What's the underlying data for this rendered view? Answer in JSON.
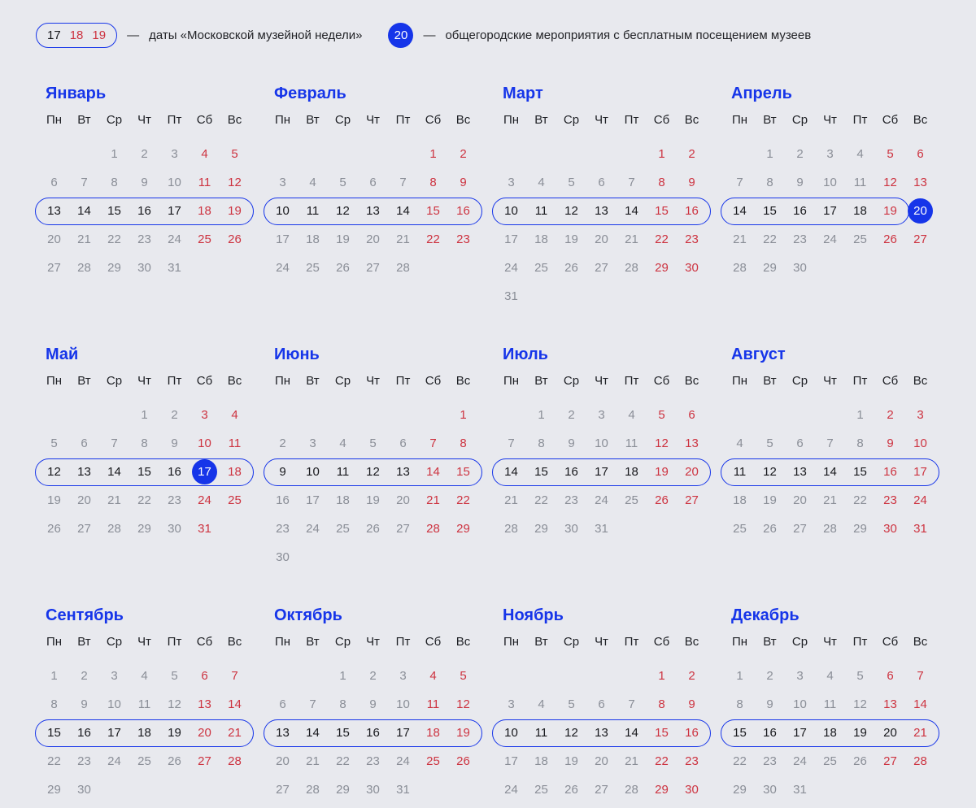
{
  "colors": {
    "background": "#e8e9ee",
    "blue": "#1635e9",
    "red": "#cd3340",
    "gray": "#8a8e97",
    "black": "#17181c",
    "header_text": "#1e2025",
    "legend_text": "#222327",
    "circle_text": "#ffffff"
  },
  "legend": {
    "dash": "—",
    "week_days": [
      "17",
      "18",
      "19"
    ],
    "week_text": "даты «Московской музейной недели»",
    "event_day": "20",
    "event_text": "общегородские мероприятия с бесплатным посещением музеев"
  },
  "weekdays": [
    "Пн",
    "Вт",
    "Ср",
    "Чт",
    "Пт",
    "Сб",
    "Вс"
  ],
  "months": [
    {
      "name": "Январь",
      "highlight_row": 2,
      "pill_cols": [
        0,
        6
      ],
      "rows": [
        [
          "",
          "",
          "1",
          "2",
          "3",
          "4",
          "5"
        ],
        [
          "6",
          "7",
          "8",
          "9",
          "10",
          "11",
          "12"
        ],
        [
          "13",
          "14",
          "15",
          "16",
          "17",
          "18",
          "19"
        ],
        [
          "20",
          "21",
          "22",
          "23",
          "24",
          "25",
          "26"
        ],
        [
          "27",
          "28",
          "29",
          "30",
          "31",
          "",
          ""
        ]
      ]
    },
    {
      "name": "Февраль",
      "highlight_row": 2,
      "pill_cols": [
        0,
        6
      ],
      "rows": [
        [
          "",
          "",
          "",
          "",
          "",
          "1",
          "2"
        ],
        [
          "3",
          "4",
          "5",
          "6",
          "7",
          "8",
          "9"
        ],
        [
          "10",
          "11",
          "12",
          "13",
          "14",
          "15",
          "16"
        ],
        [
          "17",
          "18",
          "19",
          "20",
          "21",
          "22",
          "23"
        ],
        [
          "24",
          "25",
          "26",
          "27",
          "28",
          "",
          ""
        ]
      ]
    },
    {
      "name": "Март",
      "highlight_row": 2,
      "pill_cols": [
        0,
        6
      ],
      "rows": [
        [
          "",
          "",
          "",
          "",
          "",
          "1",
          "2"
        ],
        [
          "3",
          "4",
          "5",
          "6",
          "7",
          "8",
          "9"
        ],
        [
          "10",
          "11",
          "12",
          "13",
          "14",
          "15",
          "16"
        ],
        [
          "17",
          "18",
          "19",
          "20",
          "21",
          "22",
          "23"
        ],
        [
          "24",
          "25",
          "26",
          "27",
          "28",
          "29",
          "30"
        ],
        [
          "31",
          "",
          "",
          "",
          "",
          "",
          ""
        ]
      ]
    },
    {
      "name": "Апрель",
      "highlight_row": 2,
      "pill_cols": [
        0,
        5
      ],
      "circled_day": "20",
      "rows": [
        [
          "",
          "1",
          "2",
          "3",
          "4",
          "5",
          "6"
        ],
        [
          "7",
          "8",
          "9",
          "10",
          "11",
          "12",
          "13"
        ],
        [
          "14",
          "15",
          "16",
          "17",
          "18",
          "19",
          "20"
        ],
        [
          "21",
          "22",
          "23",
          "24",
          "25",
          "26",
          "27"
        ],
        [
          "28",
          "29",
          "30",
          "",
          "",
          "",
          ""
        ]
      ]
    },
    {
      "name": "Май",
      "highlight_row": 2,
      "pill_cols": [
        0,
        6
      ],
      "circled_day": "17",
      "rows": [
        [
          "",
          "",
          "",
          "1",
          "2",
          "3",
          "4"
        ],
        [
          "5",
          "6",
          "7",
          "8",
          "9",
          "10",
          "11"
        ],
        [
          "12",
          "13",
          "14",
          "15",
          "16",
          "17",
          "18"
        ],
        [
          "19",
          "20",
          "21",
          "22",
          "23",
          "24",
          "25"
        ],
        [
          "26",
          "27",
          "28",
          "29",
          "30",
          "31",
          ""
        ]
      ]
    },
    {
      "name": "Июнь",
      "highlight_row": 2,
      "pill_cols": [
        0,
        6
      ],
      "rows": [
        [
          "",
          "",
          "",
          "",
          "",
          "",
          "1"
        ],
        [
          "2",
          "3",
          "4",
          "5",
          "6",
          "7",
          "8"
        ],
        [
          "9",
          "10",
          "11",
          "12",
          "13",
          "14",
          "15"
        ],
        [
          "16",
          "17",
          "18",
          "19",
          "20",
          "21",
          "22"
        ],
        [
          "23",
          "24",
          "25",
          "26",
          "27",
          "28",
          "29"
        ],
        [
          "30",
          "",
          "",
          "",
          "",
          "",
          ""
        ]
      ]
    },
    {
      "name": "Июль",
      "highlight_row": 2,
      "pill_cols": [
        0,
        6
      ],
      "rows": [
        [
          "",
          "1",
          "2",
          "3",
          "4",
          "5",
          "6"
        ],
        [
          "7",
          "8",
          "9",
          "10",
          "11",
          "12",
          "13"
        ],
        [
          "14",
          "15",
          "16",
          "17",
          "18",
          "19",
          "20"
        ],
        [
          "21",
          "22",
          "23",
          "24",
          "25",
          "26",
          "27"
        ],
        [
          "28",
          "29",
          "30",
          "31",
          "",
          "",
          ""
        ]
      ]
    },
    {
      "name": "Август",
      "highlight_row": 2,
      "pill_cols": [
        0,
        6
      ],
      "rows": [
        [
          "",
          "",
          "",
          "",
          "1",
          "2",
          "3"
        ],
        [
          "4",
          "5",
          "6",
          "7",
          "8",
          "9",
          "10"
        ],
        [
          "11",
          "12",
          "13",
          "14",
          "15",
          "16",
          "17"
        ],
        [
          "18",
          "19",
          "20",
          "21",
          "22",
          "23",
          "24"
        ],
        [
          "25",
          "26",
          "27",
          "28",
          "29",
          "30",
          "31"
        ]
      ]
    },
    {
      "name": "Сентябрь",
      "highlight_row": 2,
      "pill_cols": [
        0,
        6
      ],
      "rows": [
        [
          "1",
          "2",
          "3",
          "4",
          "5",
          "6",
          "7"
        ],
        [
          "8",
          "9",
          "10",
          "11",
          "12",
          "13",
          "14"
        ],
        [
          "15",
          "16",
          "17",
          "18",
          "19",
          "20",
          "21"
        ],
        [
          "22",
          "23",
          "24",
          "25",
          "26",
          "27",
          "28"
        ],
        [
          "29",
          "30",
          "",
          "",
          "",
          "",
          ""
        ]
      ]
    },
    {
      "name": "Октябрь",
      "highlight_row": 2,
      "pill_cols": [
        0,
        6
      ],
      "rows": [
        [
          "",
          "",
          "1",
          "2",
          "3",
          "4",
          "5"
        ],
        [
          "6",
          "7",
          "8",
          "9",
          "10",
          "11",
          "12"
        ],
        [
          "13",
          "14",
          "15",
          "16",
          "17",
          "18",
          "19"
        ],
        [
          "20",
          "21",
          "22",
          "23",
          "24",
          "25",
          "26"
        ],
        [
          "27",
          "28",
          "29",
          "30",
          "31",
          "",
          ""
        ]
      ]
    },
    {
      "name": "Ноябрь",
      "highlight_row": 2,
      "pill_cols": [
        0,
        6
      ],
      "rows": [
        [
          "",
          "",
          "",
          "",
          "",
          "1",
          "2"
        ],
        [
          "3",
          "4",
          "5",
          "6",
          "7",
          "8",
          "9"
        ],
        [
          "10",
          "11",
          "12",
          "13",
          "14",
          "15",
          "16"
        ],
        [
          "17",
          "18",
          "19",
          "20",
          "21",
          "22",
          "23"
        ],
        [
          "24",
          "25",
          "26",
          "27",
          "28",
          "29",
          "30"
        ]
      ]
    },
    {
      "name": "Декабрь",
      "highlight_row": 2,
      "pill_cols": [
        0,
        6
      ],
      "black_days": [
        "20"
      ],
      "rows": [
        [
          "1",
          "2",
          "3",
          "4",
          "5",
          "6",
          "7"
        ],
        [
          "8",
          "9",
          "10",
          "11",
          "12",
          "13",
          "14"
        ],
        [
          "15",
          "16",
          "17",
          "18",
          "19",
          "20",
          "21"
        ],
        [
          "22",
          "23",
          "24",
          "25",
          "26",
          "27",
          "28"
        ],
        [
          "29",
          "30",
          "31",
          "",
          "",
          "",
          ""
        ]
      ]
    }
  ]
}
